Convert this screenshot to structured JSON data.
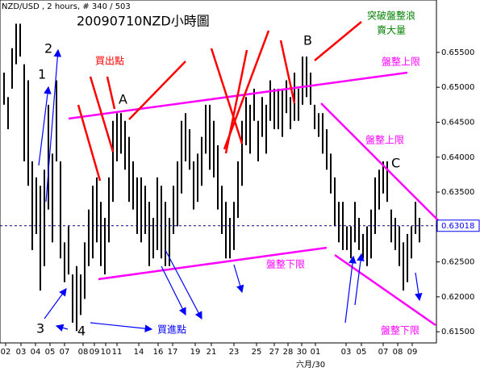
{
  "chart_data": {
    "type": "ohlc",
    "header": "NZD/USD , 2 hours, # 340 / 503",
    "title": "20090710NZD小時圖",
    "color": "#000000",
    "x": [
      1,
      2,
      3,
      4,
      5,
      6,
      7,
      8,
      9,
      10,
      11,
      12,
      13,
      14,
      15,
      16,
      17,
      18,
      19,
      20,
      21,
      22,
      23,
      24,
      25,
      26,
      27,
      28,
      29,
      30,
      31,
      32,
      33,
      34,
      35,
      36,
      37,
      38,
      39,
      40,
      41,
      42,
      43,
      44,
      45,
      46,
      47,
      48,
      49,
      50,
      51,
      52,
      53,
      54,
      55,
      56,
      57,
      58,
      59,
      60,
      61,
      62,
      63,
      64,
      65,
      66,
      67,
      68,
      69,
      70,
      71,
      72,
      73,
      74,
      75,
      76,
      77,
      78,
      79,
      80,
      81,
      82,
      83,
      84,
      85,
      86,
      87,
      88,
      89,
      90,
      91,
      92,
      93,
      94,
      95,
      96,
      97,
      98,
      99,
      100,
      101,
      102,
      103,
      104
    ],
    "high": [
      0.6521,
      0.6486,
      0.6556,
      0.6591,
      0.6591,
      0.6533,
      0.651,
      0.6394,
      0.6371,
      0.6359,
      0.6382,
      0.6475,
      0.6405,
      0.651,
      0.6394,
      0.6278,
      0.6301,
      0.6232,
      0.6244,
      0.6232,
      0.6278,
      0.6325,
      0.6359,
      0.6371,
      0.6336,
      0.6313,
      0.6371,
      0.6452,
      0.6463,
      0.6463,
      0.6452,
      0.6429,
      0.6394,
      0.6371,
      0.6371,
      0.6359,
      0.6336,
      0.6313,
      0.6371,
      0.6359,
      0.6336,
      0.6313,
      0.6359,
      0.6394,
      0.6452,
      0.6463,
      0.644,
      0.6394,
      0.6405,
      0.6429,
      0.6475,
      0.6475,
      0.6452,
      0.6417,
      0.6359,
      0.6336,
      0.6313,
      0.6336,
      0.6394,
      0.6452,
      0.6486,
      0.6475,
      0.6498,
      0.6452,
      0.6486,
      0.6475,
      0.651,
      0.6498,
      0.6498,
      0.6498,
      0.651,
      0.6486,
      0.6521,
      0.6498,
      0.6544,
      0.6544,
      0.6521,
      0.6475,
      0.6463,
      0.6463,
      0.644,
      0.6405,
      0.6371,
      0.6336,
      0.6336,
      0.6301,
      0.6301,
      0.6336,
      0.6313,
      0.629,
      0.6301,
      0.6325,
      0.6371,
      0.6382,
      0.6394,
      0.6394,
      0.6325,
      0.6313,
      0.6301,
      0.6278,
      0.629,
      0.6301,
      0.6336,
      0.6313
    ],
    "low": [
      0.6475,
      0.644,
      0.6498,
      0.6533,
      0.6544,
      0.6394,
      0.6359,
      0.6267,
      0.629,
      0.6209,
      0.6244,
      0.6325,
      0.6278,
      0.6394,
      0.6255,
      0.6221,
      0.6232,
      0.6163,
      0.6151,
      0.6174,
      0.6197,
      0.6244,
      0.6255,
      0.6278,
      0.6244,
      0.6232,
      0.6278,
      0.6336,
      0.6394,
      0.6405,
      0.6382,
      0.6336,
      0.6325,
      0.629,
      0.6278,
      0.629,
      0.6244,
      0.6255,
      0.6267,
      0.6255,
      0.6244,
      0.6244,
      0.629,
      0.6301,
      0.6348,
      0.6394,
      0.6382,
      0.6325,
      0.6336,
      0.6359,
      0.6405,
      0.6382,
      0.6371,
      0.6325,
      0.629,
      0.6255,
      0.6255,
      0.6267,
      0.6313,
      0.6359,
      0.6417,
      0.6405,
      0.6452,
      0.6394,
      0.6429,
      0.6405,
      0.6452,
      0.644,
      0.644,
      0.6429,
      0.6463,
      0.644,
      0.6452,
      0.6452,
      0.6475,
      0.6486,
      0.6475,
      0.644,
      0.6429,
      0.6405,
      0.6382,
      0.6348,
      0.6301,
      0.6278,
      0.6267,
      0.6267,
      0.6255,
      0.6278,
      0.6267,
      0.6255,
      0.6244,
      0.6255,
      0.629,
      0.6325,
      0.6348,
      0.6336,
      0.6278,
      0.6267,
      0.6244,
      0.6209,
      0.6221,
      0.6255,
      0.629,
      0.6278
    ],
    "xlim": [
      0,
      108.2
    ],
    "ylim": [
      0.6134,
      0.6625
    ],
    "xticks": [
      {
        "value": 1.4,
        "label": "02"
      },
      {
        "value": 5.2,
        "label": "03"
      },
      {
        "value": 8.8,
        "label": "04"
      },
      {
        "value": 12.4,
        "label": "05"
      },
      {
        "value": 16,
        "label": "07"
      },
      {
        "value": 20.6,
        "label": "08"
      },
      {
        "value": 23.4,
        "label": "09"
      },
      {
        "value": 26.2,
        "label": "10"
      },
      {
        "value": 29,
        "label": "11"
      },
      {
        "value": 34.4,
        "label": "14"
      },
      {
        "value": 39.2,
        "label": "16"
      },
      {
        "value": 42.8,
        "label": "17"
      },
      {
        "value": 48.4,
        "label": "19"
      },
      {
        "value": 52.4,
        "label": "21"
      },
      {
        "value": 58,
        "label": "23"
      },
      {
        "value": 63.6,
        "label": "25"
      },
      {
        "value": 68,
        "label": "27"
      },
      {
        "value": 71.4,
        "label": "28"
      },
      {
        "value": 74.8,
        "label": "30"
      },
      {
        "value": 78.2,
        "label": "01"
      },
      {
        "value": 85.8,
        "label": "03"
      },
      {
        "value": 89.6,
        "label": "05"
      },
      {
        "value": 95,
        "label": "07"
      },
      {
        "value": 98.6,
        "label": "08"
      },
      {
        "value": 102.2,
        "label": "09"
      }
    ],
    "x_period_label": "六月/30",
    "yticks": [
      {
        "value": 0.615,
        "label": "0.61500"
      },
      {
        "value": 0.62,
        "label": "0.62000"
      },
      {
        "value": 0.625,
        "label": "0.62500"
      },
      {
        "value": 0.63,
        "label": "0.63000"
      },
      {
        "value": 0.635,
        "label": "0.63500"
      },
      {
        "value": 0.64,
        "label": "0.64000"
      },
      {
        "value": 0.645,
        "label": "0.64500"
      },
      {
        "value": 0.65,
        "label": "0.65000"
      },
      {
        "value": 0.655,
        "label": "0.65500"
      }
    ],
    "current_price": {
      "value": 0.63018,
      "label": "0.63018"
    },
    "annotations": [
      "買出點",
      "突破盤整浪",
      "賣大量",
      "盤整上限",
      "盤整上限",
      "盤整下限",
      "盤整下限",
      "買進點",
      "A",
      "B",
      "C",
      "1",
      "2",
      "3",
      "4"
    ]
  }
}
